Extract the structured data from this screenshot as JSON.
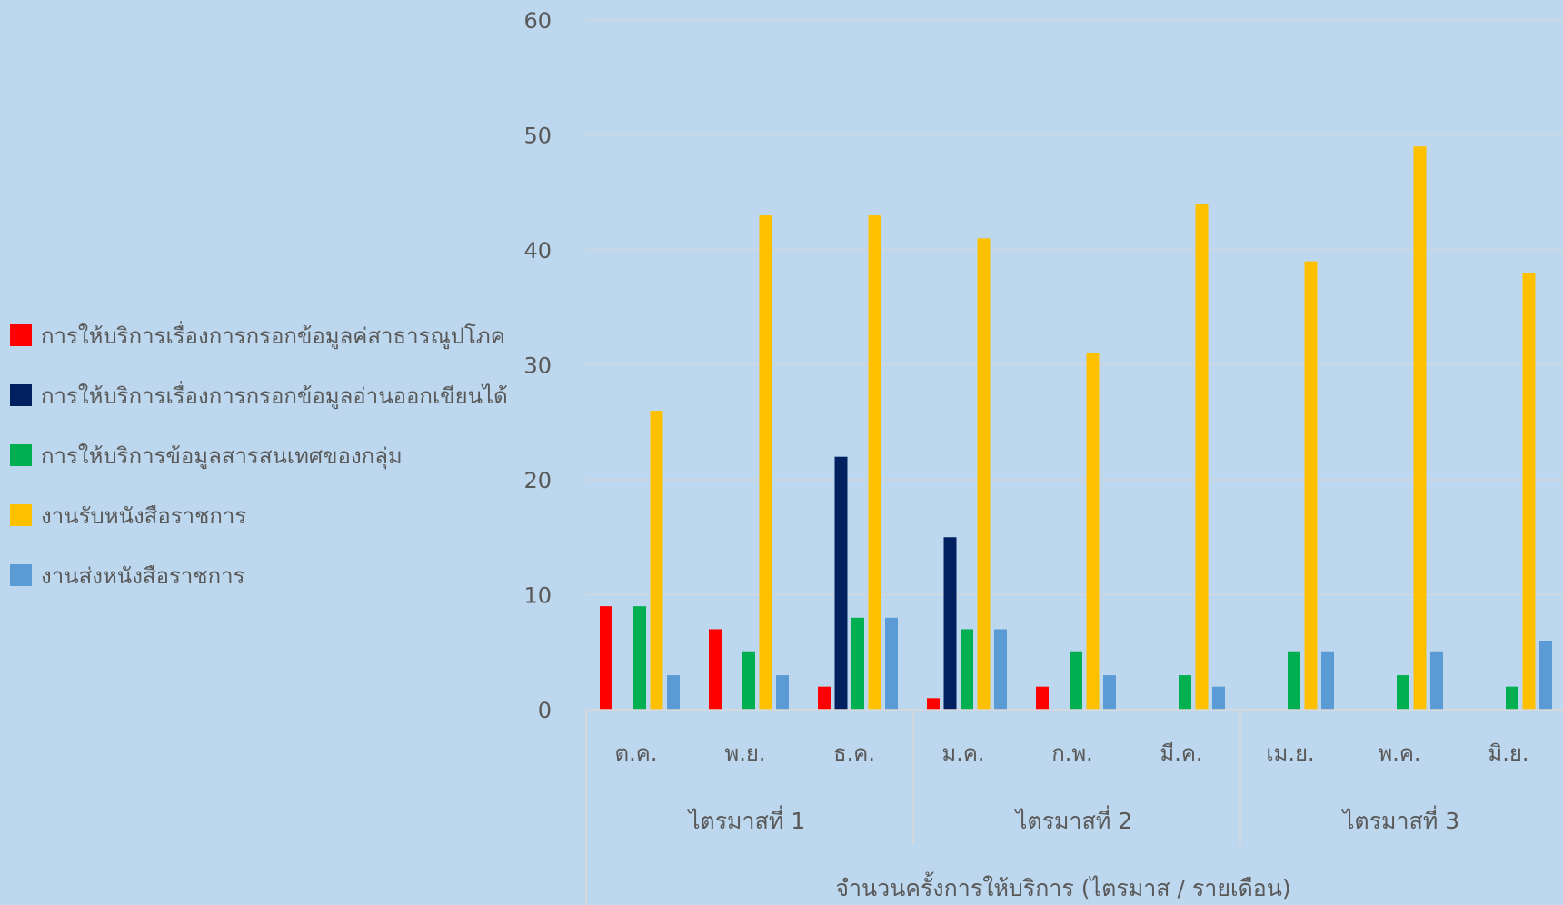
{
  "chart_data": {
    "type": "bar",
    "xlabel": "จำนวนครั้งการให้บริการ (ไตรมาส / รายเดือน)",
    "ylabel": "",
    "ylim": [
      0,
      60
    ],
    "yticks": [
      0,
      10,
      20,
      30,
      40,
      50,
      60
    ],
    "grid": true,
    "legend_position": "left",
    "groups": [
      {
        "label": "ไตรมาสที่ 1",
        "categories": [
          "ต.ค.",
          "พ.ย.",
          "ธ.ค."
        ]
      },
      {
        "label": "ไตรมาสที่ 2",
        "categories": [
          "ม.ค.",
          "ก.พ.",
          "มี.ค."
        ]
      },
      {
        "label": "ไตรมาสที่ 3",
        "categories": [
          "เม.ย.",
          "พ.ค.",
          "มิ.ย."
        ]
      }
    ],
    "categories": [
      "ต.ค.",
      "พ.ย.",
      "ธ.ค.",
      "ม.ค.",
      "ก.พ.",
      "มี.ค.",
      "เม.ย.",
      "พ.ค.",
      "มิ.ย."
    ],
    "series": [
      {
        "name": "การให้บริการเรื่องการกรอกข้อมูลค่สาธารณูปโภค",
        "color": "#ff0000",
        "values": [
          9,
          7,
          2,
          1,
          2,
          0,
          0,
          0,
          0
        ]
      },
      {
        "name": "การให้บริการเรื่องการกรอกข้อมูลอ่านออกเขียนได้",
        "color": "#002060",
        "values": [
          0,
          0,
          22,
          15,
          0,
          0,
          0,
          0,
          0
        ]
      },
      {
        "name": "การให้บริการข้อมูลสารสนเทศของกลุ่ม",
        "color": "#00b050",
        "values": [
          9,
          5,
          8,
          7,
          5,
          3,
          5,
          3,
          2
        ]
      },
      {
        "name": "งานรับหนังสือราชการ",
        "color": "#ffc000",
        "values": [
          26,
          43,
          43,
          41,
          31,
          44,
          39,
          49,
          38
        ]
      },
      {
        "name": "งานส่งหนังสือราชการ",
        "color": "#5b9bd5",
        "values": [
          3,
          3,
          8,
          7,
          3,
          2,
          5,
          5,
          6
        ]
      }
    ]
  },
  "colors": {
    "background": "#bdd7ee",
    "gridline": "#d9d9d9",
    "text": "#595959"
  }
}
